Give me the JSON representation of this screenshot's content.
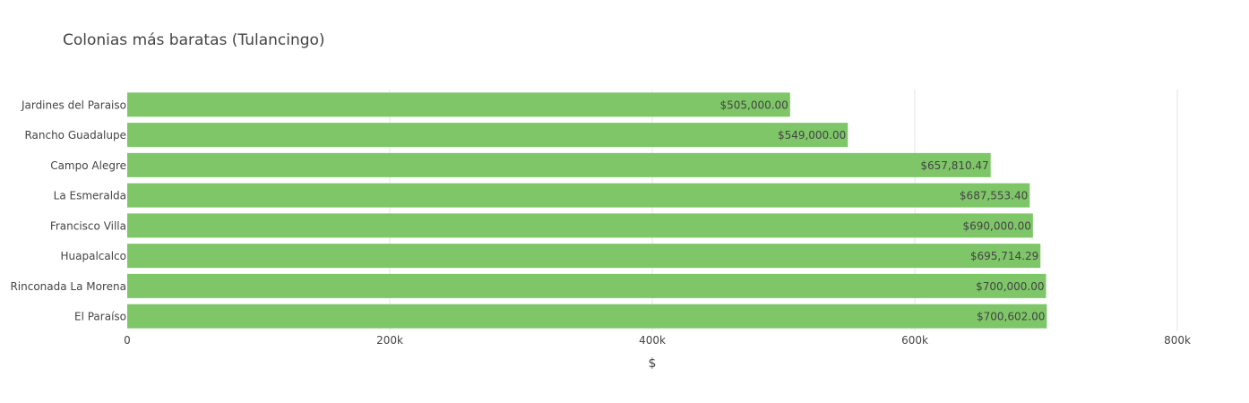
{
  "chart_data": {
    "type": "bar",
    "orientation": "horizontal",
    "title": "Colonias más baratas (Tulancingo)",
    "xlabel": "$",
    "ylabel": "",
    "xlim": [
      0,
      800000
    ],
    "x_ticks": [
      0,
      200000,
      400000,
      600000,
      800000
    ],
    "x_tick_labels": [
      "0",
      "200k",
      "400k",
      "600k",
      "800k"
    ],
    "grid": true,
    "bar_color": "#7ec668",
    "categories": [
      "Jardines del Paraiso",
      "Rancho Guadalupe",
      "Campo Alegre",
      "La Esmeralda",
      "Francisco Villa",
      "Huapalcalco",
      "Rinconada La Morena",
      "El Paraíso"
    ],
    "values": [
      505000.0,
      549000.0,
      657810.47,
      687553.4,
      690000.0,
      695714.29,
      700000.0,
      700602.0
    ],
    "data_labels": [
      "$505,000.00",
      "$549,000.00",
      "$657,810.47",
      "$687,553.40",
      "$690,000.00",
      "$695,714.29",
      "$700,000.00",
      "$700,602.00"
    ]
  }
}
